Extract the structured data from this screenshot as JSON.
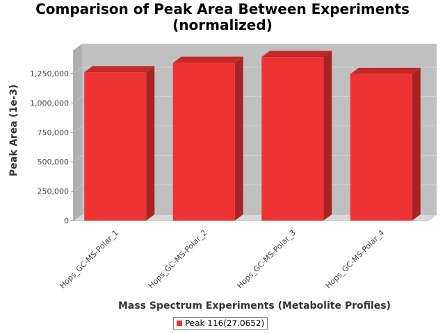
{
  "chart_data": {
    "type": "bar",
    "title": [
      "Comparison of Peak Area Between Experiments",
      "(normalized)"
    ],
    "xlabel": "Mass Spectrum Experiments (Metabolite Profiles)",
    "ylabel": "Peak Area (1e-3)",
    "categories": [
      "Hops_GC-MS-Polar_1",
      "Hops_GC-MS-Polar_2",
      "Hops_GC-MS-Polar_3",
      "Hops_GC-MS-Polar_4"
    ],
    "series": [
      {
        "name": "Peak 116(27.0652)",
        "values": [
          1260000,
          1340000,
          1390000,
          1245000
        ],
        "color": "#ee3333"
      }
    ],
    "ylim": [
      0,
      1450000
    ],
    "yticks": [
      0,
      250000,
      500000,
      750000,
      1000000,
      1250000
    ],
    "ytick_labels": [
      "0",
      "250,000",
      "500,000",
      "750,000",
      "1,000,000",
      "1,250,000"
    ],
    "grid": true,
    "style": "3d",
    "legend_position": "bottom"
  },
  "colors": {
    "plot_background": "#c0c0c0",
    "floor": "#d8d8d8",
    "bar_front": "#ee3333",
    "bar_side": "#a82424",
    "bar_top": "#c22a2a"
  }
}
